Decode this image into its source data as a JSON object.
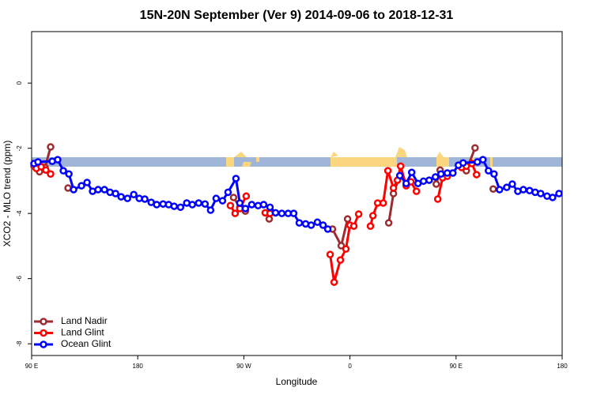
{
  "chart_data": {
    "type": "line",
    "title": "15N-20N September (Ver 9)   2014-09-06 to 2018-12-31",
    "xlabel": "Longitude",
    "ylabel": "XCO2 - MLO trend (ppm)",
    "xlim": [
      90,
      540
    ],
    "ylim": [
      -8.36,
      1.58
    ],
    "xticks": [
      {
        "value": 90,
        "label": "90 E"
      },
      180,
      {
        "value": 270,
        "label": "90 W"
      },
      {
        "value": 360,
        "label": "0"
      },
      {
        "value": 450,
        "label": "90 E"
      },
      {
        "value": 540,
        "label": "180"
      }
    ],
    "yticks": [
      0,
      -2,
      -4,
      -6,
      -8
    ],
    "legend": "bottom-left",
    "series": [
      {
        "name": "Land Nadir",
        "color": "#9b2d30",
        "x": [
          92.0,
          96.7,
          101.4,
          106.1,
          null,
          120.9,
          null,
          261.3,
          266.6,
          271.3,
          null,
          291.5,
          null,
          345.2,
          352.6,
          358.0,
          null,
          392.9,
          396.9,
          402.3,
          null,
          433.2,
          436.5,
          null,
          455.4,
          458.7,
          466.1,
          null,
          481.5
        ],
        "values": [
          -2.55,
          -2.72,
          -2.59,
          -1.96,
          null,
          -3.22,
          null,
          -3.51,
          -3.81,
          -3.93,
          null,
          -4.17,
          null,
          -4.48,
          -4.99,
          -4.17,
          null,
          -4.29,
          -3.39,
          -2.84,
          null,
          -3.1,
          -2.67,
          null,
          -2.5,
          -2.69,
          -1.99,
          null,
          -3.25
        ]
      },
      {
        "name": "Land Glint",
        "color": "#ff0000",
        "x": [
          94.0,
          98.1,
          102.1,
          106.1,
          null,
          258.6,
          262.6,
          266.6,
          272.0,
          null,
          288.1,
          292.2,
          null,
          343.2,
          346.6,
          351.9,
          356.6,
          360.0,
          363.3,
          367.4,
          null,
          377.4,
          379.5,
          383.5,
          388.2,
          392.2,
          396.9,
          400.3,
          403.0,
          407.7,
          411.7,
          416.4,
          null,
          434.5,
          438.6,
          442.6,
          null,
          454.7,
          458.7,
          463.4,
          467.4
        ],
        "values": [
          -2.62,
          -2.57,
          -2.67,
          -2.79,
          null,
          -3.76,
          -4.0,
          -3.85,
          -3.47,
          null,
          -3.98,
          -4.0,
          null,
          -5.26,
          -6.11,
          -5.43,
          -5.09,
          -4.36,
          -4.39,
          -4.02,
          null,
          -4.39,
          -4.07,
          -3.68,
          -3.68,
          -2.69,
          -3.22,
          -2.98,
          -2.55,
          -3.15,
          -3.03,
          -3.32,
          null,
          -3.56,
          -2.91,
          -2.86,
          null,
          -2.59,
          -2.55,
          -2.47,
          -2.81
        ]
      },
      {
        "name": "Ocean Glint",
        "color": "#0000ff",
        "x": [
          92.0,
          95.4,
          107.5,
          112.1,
          116.9,
          121.6,
          125.6,
          132.3,
          137.0,
          141.7,
          146.4,
          151.8,
          156.5,
          161.2,
          165.9,
          171.3,
          176.6,
          181.3,
          186.0,
          191.4,
          196.1,
          201.5,
          206.2,
          210.9,
          216.3,
          221.6,
          226.3,
          231.7,
          237.1,
          241.8,
          246.5,
          251.9,
          256.6,
          263.3,
          266.6,
          271.3,
          276.7,
          282.1,
          286.8,
          292.2,
          296.9,
          302.2,
          307.6,
          312.3,
          317.0,
          322.4,
          327.1,
          332.4,
          337.2,
          341.2,
          null,
          402.3,
          407.7,
          412.4,
          417.7,
          422.4,
          427.2,
          432.5,
          437.2,
          442.6,
          447.3,
          452.0,
          456.0,
          468.1,
          472.8,
          477.5,
          482.2,
          486.9,
          493.0,
          497.7,
          502.4,
          507.1,
          512.4,
          517.1,
          521.8,
          527.2,
          531.9,
          537.3
        ],
        "values": [
          -2.47,
          -2.42,
          -2.4,
          -2.35,
          -2.69,
          -2.79,
          -3.27,
          -3.15,
          -3.05,
          -3.32,
          -3.27,
          -3.27,
          -3.35,
          -3.39,
          -3.49,
          -3.54,
          -3.42,
          -3.54,
          -3.56,
          -3.66,
          -3.73,
          -3.71,
          -3.73,
          -3.78,
          -3.81,
          -3.68,
          -3.73,
          -3.68,
          -3.71,
          -3.9,
          -3.54,
          -3.61,
          -3.35,
          -2.93,
          -3.68,
          -3.85,
          -3.73,
          -3.76,
          -3.73,
          -3.81,
          -3.98,
          -4.0,
          -4.0,
          -4.0,
          -4.29,
          -4.32,
          -4.36,
          -4.27,
          -4.36,
          -4.48,
          null,
          -2.84,
          -3.08,
          -2.74,
          -3.08,
          -3.01,
          -2.98,
          -2.88,
          -2.79,
          -2.76,
          -2.76,
          -2.52,
          -2.45,
          -2.42,
          -2.35,
          -2.69,
          -2.79,
          -3.27,
          -3.2,
          -3.1,
          -3.32,
          -3.27,
          -3.3,
          -3.35,
          -3.39,
          -3.47,
          -3.51,
          -3.39
        ]
      }
    ]
  }
}
